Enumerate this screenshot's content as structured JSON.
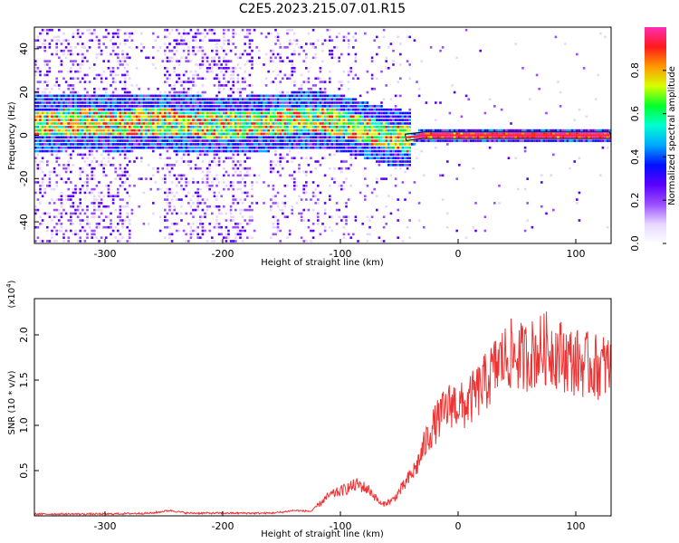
{
  "title": "C2E5.2023.215.07.01.R15",
  "chart_data": [
    {
      "type": "heatmap",
      "xlabel": "Height of straight line (km)",
      "ylabel": "Frequency (Hz)",
      "xlim": [
        -360,
        130
      ],
      "ylim": [
        -50,
        50
      ],
      "xticks": [
        -300,
        -200,
        -100,
        0,
        100
      ],
      "yticks": [
        -40,
        -20,
        0,
        20,
        40
      ],
      "colorbar": {
        "label": "Normalized spectral amplitude",
        "range": [
          0,
          1
        ],
        "ticks": [
          0.0,
          0.2,
          0.4,
          0.6,
          0.8
        ],
        "colors": [
          "#ffffff",
          "#e6d6ff",
          "#9a4dff",
          "#5a00ff",
          "#0011ff",
          "#00a8ff",
          "#00ffd0",
          "#00ff2a",
          "#d6ff00",
          "#ff9800",
          "#ff1a1a",
          "#ff2db4"
        ]
      },
      "ridge": {
        "description_free": true,
        "x": [
          -350,
          -320,
          -290,
          -260,
          -230,
          -200,
          -170,
          -150,
          -120,
          -100,
          -80,
          -60,
          -45,
          -30,
          -10,
          0,
          40,
          80,
          130
        ],
        "y": [
          6,
          7,
          6,
          7,
          6,
          5,
          6,
          7,
          8,
          6,
          3,
          0,
          -1,
          0,
          0,
          0,
          0,
          0,
          0
        ]
      },
      "grid": false
    },
    {
      "type": "line",
      "xlabel": "Height of straight line (km)",
      "ylabel": "SNR (10 * v/v)",
      "multiplier": "(x10",
      "multiplier_exp": "4",
      "multiplier_close": ")",
      "xlim": [
        -360,
        130
      ],
      "ylim": [
        0,
        2.4
      ],
      "xticks": [
        -300,
        -200,
        -100,
        0,
        100
      ],
      "yticks": [
        0.5,
        1.0,
        1.5,
        2.0
      ],
      "ytick_labels": [
        "0.5",
        "1.0",
        "1.5",
        "2.0"
      ],
      "series": [
        {
          "color": "#ee3333",
          "x": [
            -360,
            -300,
            -260,
            -245,
            -230,
            -200,
            -160,
            -150,
            -140,
            -125,
            -110,
            -95,
            -85,
            -75,
            -65,
            -55,
            -45,
            -35,
            -25,
            -15,
            -5,
            5,
            15,
            25,
            35,
            45,
            55,
            65,
            75,
            85,
            95,
            105,
            115,
            130
          ],
          "values": [
            0.02,
            0.02,
            0.03,
            0.06,
            0.03,
            0.03,
            0.03,
            0.04,
            0.06,
            0.05,
            0.22,
            0.3,
            0.35,
            0.28,
            0.12,
            0.18,
            0.35,
            0.55,
            0.9,
            1.1,
            1.25,
            1.2,
            1.35,
            1.5,
            1.7,
            1.78,
            1.75,
            1.8,
            1.85,
            1.8,
            1.72,
            1.68,
            1.65,
            1.65
          ]
        }
      ],
      "grid": false
    }
  ]
}
